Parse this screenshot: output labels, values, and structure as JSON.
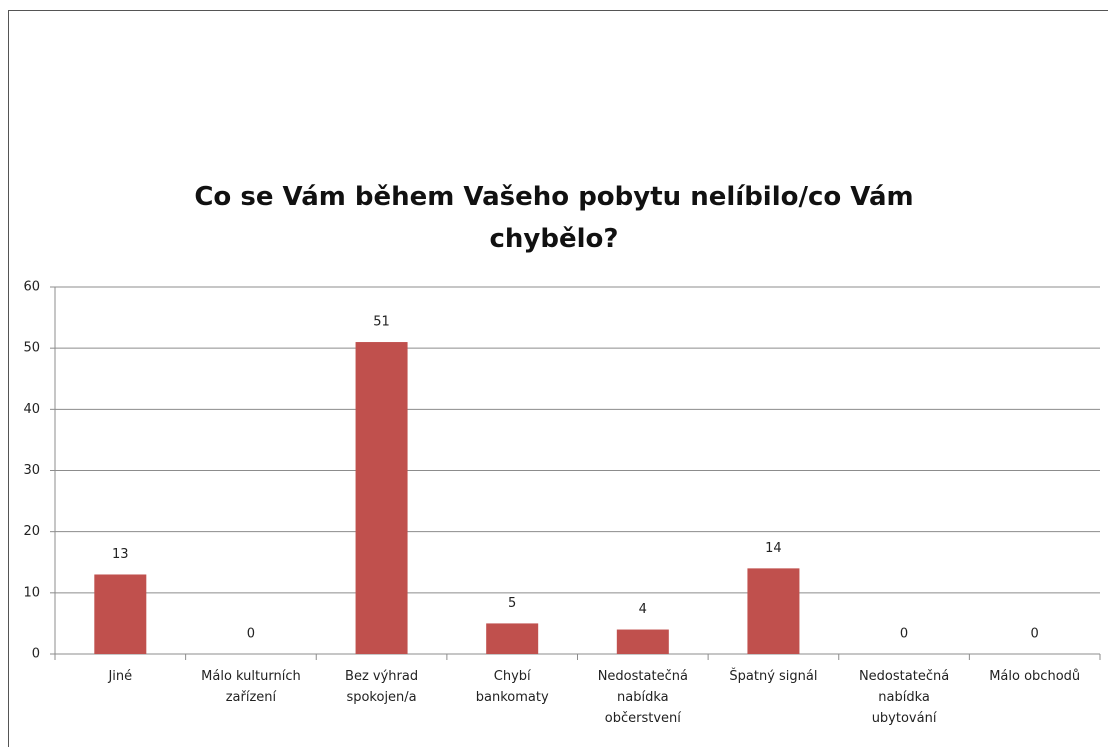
{
  "chart_data": {
    "type": "bar",
    "title": "Co se Vám během Vašeho pobytu nelíbilo/co Vám chybělo?",
    "categories": [
      "Jiné",
      "Málo kulturních zařízení",
      "Bez výhrad spokojen/a",
      "Chybí bankomaty",
      "Nedostatečná nabídka občerstvení",
      "Špatný signál",
      "Nedostatečná nabídka ubytování",
      "Málo obchodů"
    ],
    "values": [
      13,
      0,
      51,
      5,
      4,
      14,
      0,
      0
    ],
    "color": "#c0504d",
    "ylim": [
      0,
      60
    ],
    "yticks": [
      0,
      10,
      20,
      30,
      40,
      50,
      60
    ],
    "grid": true
  }
}
